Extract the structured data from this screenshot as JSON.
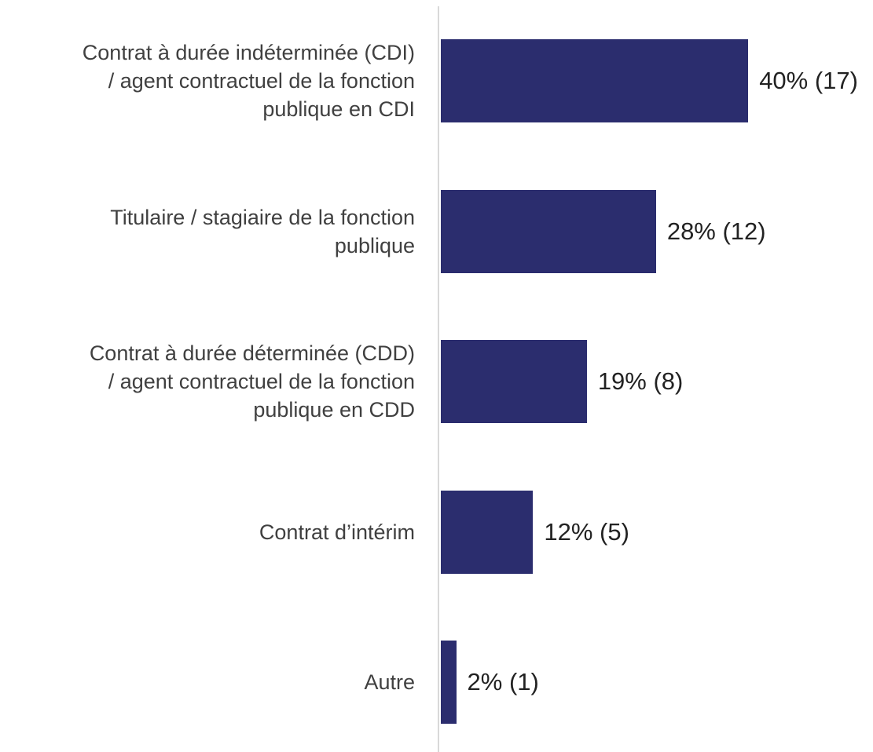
{
  "chart_data": {
    "type": "bar",
    "orientation": "horizontal",
    "categories": [
      "Contrat à durée indéterminée (CDI)\n/ agent contractuel de la fonction\npublique en CDI",
      "Titulaire / stagiaire de la fonction\npublique",
      "Contrat à durée déterminée (CDD)\n/ agent contractuel de la fonction\npublique en CDD",
      "Contrat d’intérim",
      "Autre"
    ],
    "values": [
      40,
      28,
      19,
      12,
      2
    ],
    "value_labels": [
      "40% (17)",
      "28% (12)",
      "19% (8)",
      "12% (5)",
      "2% (1)"
    ],
    "color": "#2b2d6e"
  }
}
